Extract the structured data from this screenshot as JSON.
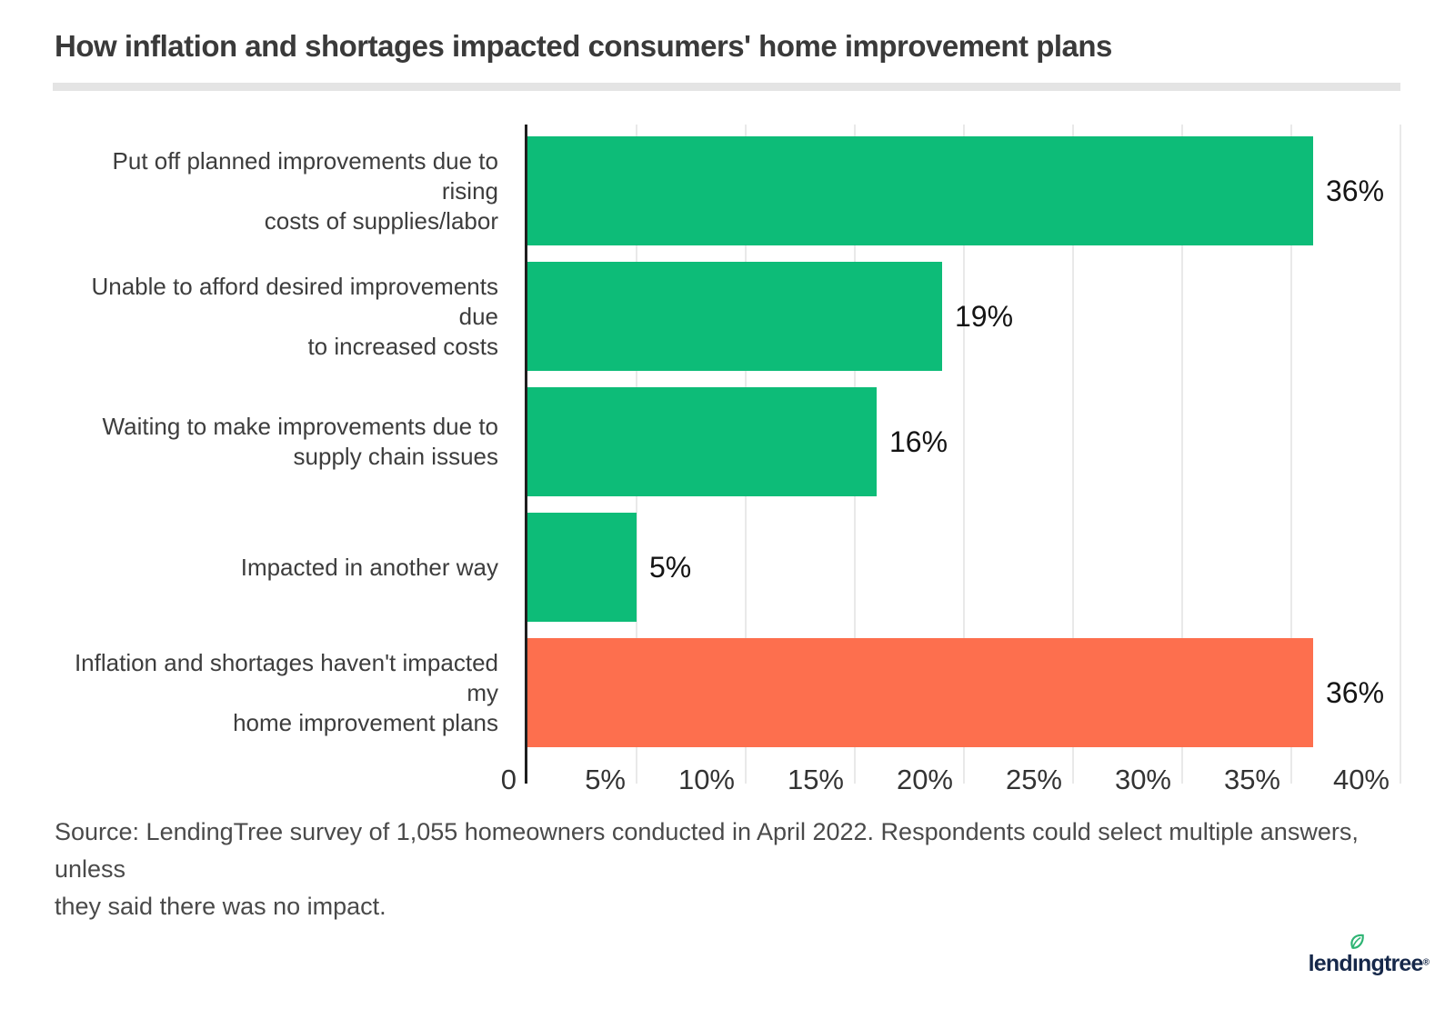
{
  "chart_data": {
    "type": "bar",
    "orientation": "horizontal",
    "title": "How inflation and shortages impacted consumers' home improvement plans",
    "categories": [
      "Put off planned improvements due to rising costs of supplies/labor",
      "Unable to afford desired improvements due to increased costs",
      "Waiting to make improvements due to supply chain issues",
      "Impacted in another way",
      "Inflation and shortages haven't impacted my home improvement plans"
    ],
    "category_lines": [
      [
        "Put off planned improvements due to rising",
        "costs of supplies/labor"
      ],
      [
        "Unable to afford desired improvements due",
        "to increased costs"
      ],
      [
        "Waiting to make improvements due to",
        "supply chain issues"
      ],
      [
        "Impacted in another way"
      ],
      [
        "Inflation and shortages haven't impacted my",
        "home improvement plans"
      ]
    ],
    "values": [
      36,
      19,
      16,
      5,
      36
    ],
    "value_labels": [
      "36%",
      "19%",
      "16%",
      "5%",
      "36%"
    ],
    "bar_colors": [
      "#0dbc78",
      "#0dbc78",
      "#0dbc78",
      "#0dbc78",
      "#fd6f4e"
    ],
    "xlim": [
      0,
      40
    ],
    "x_ticks": [
      {
        "value": 0,
        "label": "0"
      },
      {
        "value": 5,
        "label": "5%"
      },
      {
        "value": 10,
        "label": "10%"
      },
      {
        "value": 15,
        "label": "15%"
      },
      {
        "value": 20,
        "label": "20%"
      },
      {
        "value": 25,
        "label": "25%"
      },
      {
        "value": 30,
        "label": "30%"
      },
      {
        "value": 35,
        "label": "35%"
      },
      {
        "value": 40,
        "label": "40%"
      }
    ],
    "grid": true,
    "legend": "none",
    "xlabel": "",
    "ylabel": ""
  },
  "source": {
    "lines": [
      "Source: LendingTree survey of 1,055 homeowners conducted in April 2022. Respondents could select multiple answers, unless",
      "they said there was no impact."
    ]
  },
  "logo": {
    "name": "lendingtree",
    "pre": "lend",
    "i": "ı",
    "post": "ngtree",
    "reg": "®",
    "text_color": "#16284a",
    "leaf_color": "#2db473"
  },
  "colors": {
    "green": "#0dbc78",
    "orange": "#fd6f4e",
    "axis": "#1f1f1f",
    "gridline": "#e9e9e9",
    "divider": "#e4e4e4"
  }
}
